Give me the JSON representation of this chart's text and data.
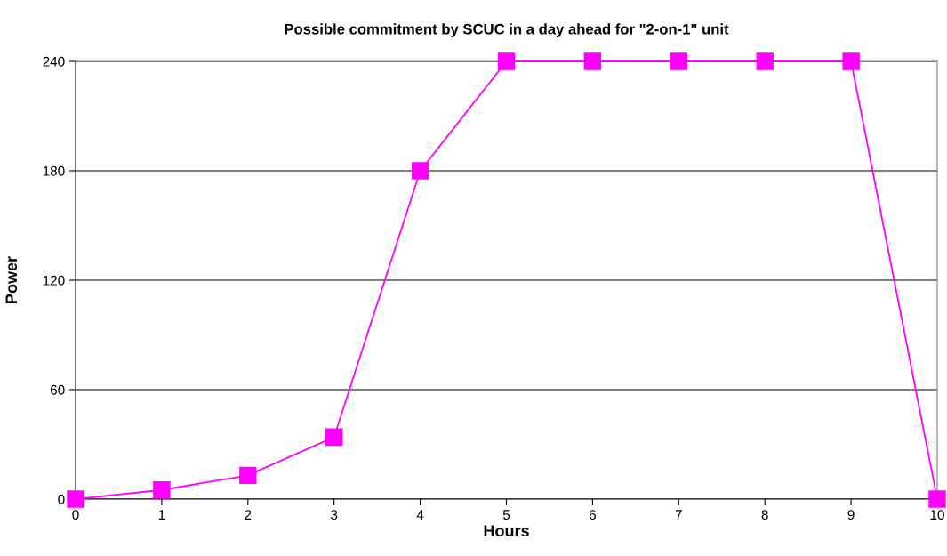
{
  "chart_data": {
    "type": "line",
    "title": "Possible commitment by SCUC in a day ahead for \"2-on-1\" unit",
    "xlabel": "Hours",
    "ylabel": "Power",
    "x": [
      0,
      1,
      2,
      3,
      4,
      5,
      6,
      7,
      8,
      9,
      10
    ],
    "series": [
      {
        "color": "#ff00ff",
        "values": [
          0,
          5,
          13,
          34,
          180,
          240,
          240,
          240,
          240,
          240,
          0
        ]
      }
    ],
    "xlim": [
      0,
      10
    ],
    "xticks": [
      0,
      1,
      2,
      3,
      4,
      5,
      6,
      7,
      8,
      9,
      10
    ],
    "ylim": [
      0,
      240
    ],
    "yticks": [
      0,
      60,
      120,
      180,
      240
    ],
    "grid": "y",
    "marker": "square",
    "line_style": "solid"
  }
}
